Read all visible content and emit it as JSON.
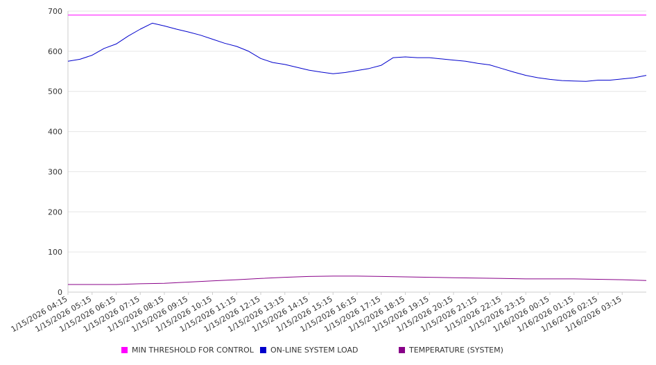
{
  "chart_data": {
    "type": "line",
    "xlabel": "",
    "ylabel": "",
    "ylim": [
      0,
      700
    ],
    "yticks": [
      "0",
      "100",
      "200",
      "300",
      "400",
      "500",
      "600",
      "700"
    ],
    "xticks": [
      "1/15/2026 04:15",
      "1/15/2026 05:15",
      "1/15/2026 06:15",
      "1/15/2026 07:15",
      "1/15/2026 08:15",
      "1/15/2026 09:15",
      "1/15/2026 10:15",
      "1/15/2026 11:15",
      "1/15/2026 12:15",
      "1/15/2026 13:15",
      "1/15/2026 14:15",
      "1/15/2026 15:15",
      "1/15/2026 16:15",
      "1/15/2026 17:15",
      "1/15/2026 18:15",
      "1/15/2026 19:15",
      "1/15/2026 20:15",
      "1/15/2026 21:15",
      "1/15/2026 22:15",
      "1/15/2026 23:15",
      "1/16/2026 00:15",
      "1/16/2026 01:15",
      "1/16/2026 02:15",
      "1/16/2026 03:15"
    ],
    "grid": "horizontal",
    "legend_position": "bottom",
    "series": [
      {
        "name": "MIN THRESHOLD FOR CONTROL",
        "color": "#ff00ff",
        "x": [
          "1/15/2026 04:15",
          "1/16/2026 04:15"
        ],
        "values": [
          690,
          690
        ]
      },
      {
        "name": "ON-LINE SYSTEM LOAD",
        "color": "#0000cc",
        "x": [
          "1/15/2026 04:15",
          "1/15/2026 04:45",
          "1/15/2026 05:15",
          "1/15/2026 05:45",
          "1/15/2026 06:15",
          "1/15/2026 06:45",
          "1/15/2026 07:15",
          "1/15/2026 07:45",
          "1/15/2026 08:15",
          "1/15/2026 08:45",
          "1/15/2026 09:15",
          "1/15/2026 09:45",
          "1/15/2026 10:15",
          "1/15/2026 10:45",
          "1/15/2026 11:15",
          "1/15/2026 11:45",
          "1/15/2026 12:15",
          "1/15/2026 12:45",
          "1/15/2026 13:15",
          "1/15/2026 13:45",
          "1/15/2026 14:15",
          "1/15/2026 14:45",
          "1/15/2026 15:15",
          "1/15/2026 15:45",
          "1/15/2026 16:15",
          "1/15/2026 16:45",
          "1/15/2026 17:15",
          "1/15/2026 17:45",
          "1/15/2026 18:15",
          "1/15/2026 18:45",
          "1/15/2026 19:15",
          "1/15/2026 19:45",
          "1/15/2026 20:15",
          "1/15/2026 20:45",
          "1/15/2026 21:15",
          "1/15/2026 21:45",
          "1/15/2026 22:15",
          "1/15/2026 22:45",
          "1/15/2026 23:15",
          "1/15/2026 23:45",
          "1/16/2026 00:15",
          "1/16/2026 00:45",
          "1/16/2026 01:15",
          "1/16/2026 01:45",
          "1/16/2026 02:15",
          "1/16/2026 02:45",
          "1/16/2026 03:15",
          "1/16/2026 03:45",
          "1/16/2026 04:15"
        ],
        "values": [
          575,
          580,
          590,
          607,
          618,
          638,
          655,
          670,
          663,
          655,
          648,
          640,
          630,
          620,
          612,
          600,
          582,
          572,
          567,
          560,
          553,
          548,
          544,
          547,
          552,
          557,
          565,
          584,
          586,
          584,
          584,
          581,
          578,
          575,
          570,
          566,
          557,
          548,
          540,
          534,
          530,
          527,
          526,
          525,
          528,
          528,
          531,
          534,
          540
        ]
      },
      {
        "name": "TEMPERATURE (SYSTEM)",
        "color": "#880088",
        "x": [
          "1/15/2026 04:15",
          "1/15/2026 06:15",
          "1/15/2026 07:15",
          "1/15/2026 08:15",
          "1/15/2026 09:15",
          "1/15/2026 10:15",
          "1/15/2026 11:15",
          "1/15/2026 12:15",
          "1/15/2026 13:15",
          "1/15/2026 14:15",
          "1/15/2026 15:15",
          "1/15/2026 16:15",
          "1/15/2026 17:15",
          "1/15/2026 18:15",
          "1/15/2026 19:15",
          "1/15/2026 20:15",
          "1/15/2026 21:15",
          "1/15/2026 22:15",
          "1/15/2026 23:15",
          "1/16/2026 00:15",
          "1/16/2026 01:15",
          "1/16/2026 02:15",
          "1/16/2026 03:15",
          "1/16/2026 04:15"
        ],
        "values": [
          19,
          19,
          21,
          22,
          25,
          28,
          31,
          34,
          37,
          39,
          40,
          40,
          39,
          38,
          37,
          36,
          35,
          34,
          33,
          33,
          33,
          32,
          31,
          29
        ]
      }
    ]
  }
}
